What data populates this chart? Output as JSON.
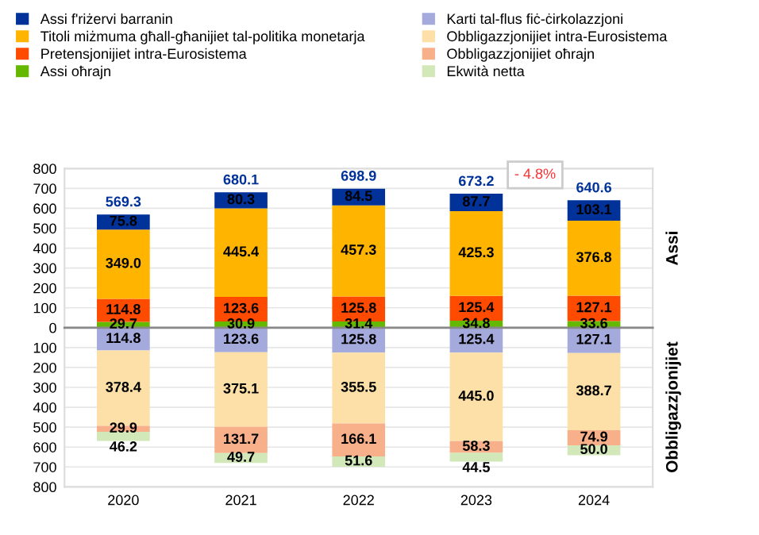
{
  "chart_data": [
    {
      "type": "bar",
      "stacked": true,
      "categories": [
        "2020",
        "2021",
        "2022",
        "2023",
        "2024"
      ],
      "series": [
        {
          "name": "Assi oħrajn",
          "color": "#65b800",
          "values": [
            29.7,
            30.9,
            31.4,
            34.8,
            33.6
          ],
          "value_labels": [
            "29.7",
            "30.9",
            "31.4",
            "34.8",
            "33.6"
          ]
        },
        {
          "name": "Pretensjonijiet intra-Eurosistema",
          "color": "#ff4b00",
          "values": [
            114.8,
            123.6,
            125.8,
            125.4,
            127.1
          ],
          "value_labels": [
            "114.8",
            "123.6",
            "125.8",
            "125.4",
            "127.1"
          ]
        },
        {
          "name": "Titoli miżmuma għall-għanijiet tal-politika monetarja",
          "color": "#ffb400",
          "values": [
            349.0,
            445.4,
            457.3,
            425.3,
            376.8
          ],
          "value_labels": [
            "349.0",
            "445.4",
            "457.3",
            "425.3",
            "376.8"
          ]
        },
        {
          "name": "Assi f'riżervi barranin",
          "color": "#003299",
          "values": [
            75.8,
            80.3,
            84.5,
            87.7,
            103.1
          ],
          "value_labels": [
            "75.8",
            "80.3",
            "84.5",
            "87.7",
            "103.1"
          ]
        }
      ],
      "totals": [
        "569.3",
        "680.1",
        "698.9",
        "673.2",
        "640.6"
      ],
      "ylim": [
        0,
        800
      ],
      "yticks": [
        0,
        100,
        200,
        300,
        400,
        500,
        600,
        700,
        800
      ],
      "annotations": [
        "- 4.8%",
        "Assi"
      ],
      "tick_labels": "y",
      "grid": "y",
      "legend": "top"
    },
    {
      "type": "bar",
      "stacked": true,
      "categories": [
        "2020",
        "2021",
        "2022",
        "2023",
        "2024"
      ],
      "series": [
        {
          "name": "Karti tal-flus fiċ-ċirkolazzjoni",
          "color": "#a4aadb",
          "values": [
            114.8,
            123.6,
            125.8,
            125.4,
            127.1
          ],
          "value_labels": [
            "114.8",
            "123.6",
            "125.8",
            "125.4",
            "127.1"
          ]
        },
        {
          "name": "Obbligazzjonijiet intra-Eurosistema",
          "color": "#fde0a8",
          "values": [
            378.4,
            375.1,
            355.5,
            445.0,
            388.7
          ],
          "value_labels": [
            "378.4",
            "375.1",
            "355.5",
            "445.0",
            "388.7"
          ]
        },
        {
          "name": "Obbligazzjonijiet oħrajn",
          "color": "#f7b08a",
          "values": [
            29.9,
            131.7,
            166.1,
            58.3,
            74.9
          ],
          "value_labels": [
            "29.9",
            "131.7",
            "166.1",
            "58.3",
            "74.9"
          ]
        },
        {
          "name": "Ekwità netta",
          "color": "#d2e8b8",
          "values": [
            46.2,
            49.7,
            51.6,
            44.5,
            50.0
          ],
          "value_labels": [
            "46.2",
            "49.7",
            "51.6",
            "44.5",
            "50.0"
          ]
        }
      ],
      "ylim": [
        800,
        0
      ],
      "yticks": [
        100,
        200,
        300,
        400,
        500,
        600,
        700,
        800
      ],
      "annotations": [
        "Obbligazzjonijiet"
      ],
      "grid": "y",
      "legend": "top"
    }
  ]
}
